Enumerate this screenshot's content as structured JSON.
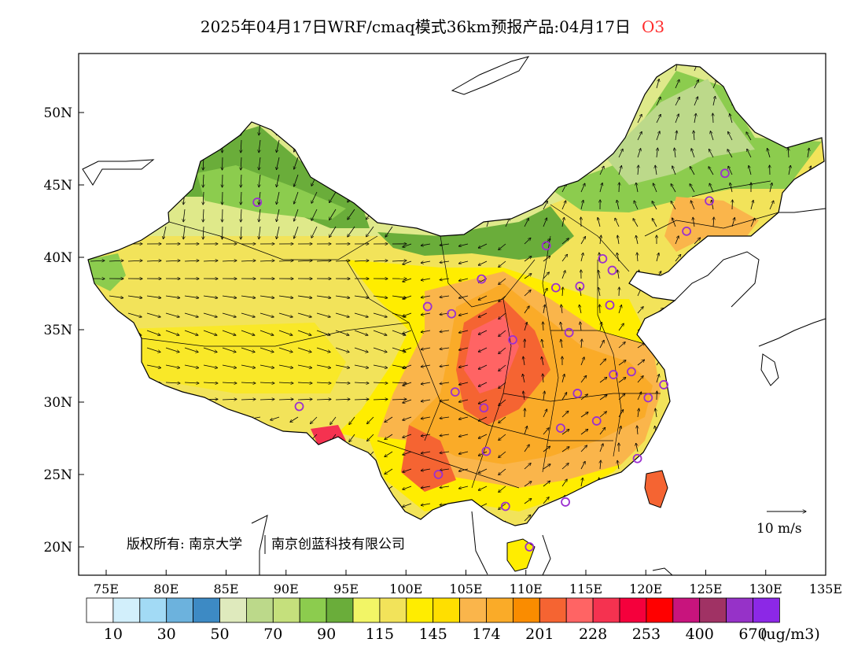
{
  "title": "2025年04月17日WRF/cmaq模式36km预报产品:04月17日",
  "variable": "O3",
  "map_data": {
    "lon_ticks": [
      "75E",
      "80E",
      "85E",
      "90E",
      "95E",
      "100E",
      "105E",
      "110E",
      "115E",
      "120E",
      "125E",
      "130E",
      "135E"
    ],
    "lat_ticks": [
      "50N",
      "45N",
      "40N",
      "35N",
      "30N",
      "25N",
      "20N"
    ],
    "copyright": "版权所有: 南京大学",
    "company": "南京创蓝科技有限公司",
    "wind_reference": "10 m/s",
    "stations": [
      {
        "lon": 87.6,
        "lat": 43.8
      },
      {
        "lon": 91.1,
        "lat": 29.7
      },
      {
        "lon": 101.8,
        "lat": 36.6
      },
      {
        "lon": 103.8,
        "lat": 36.1
      },
      {
        "lon": 106.3,
        "lat": 38.5
      },
      {
        "lon": 111.7,
        "lat": 40.8
      },
      {
        "lon": 112.5,
        "lat": 37.9
      },
      {
        "lon": 114.5,
        "lat": 38.0
      },
      {
        "lon": 116.4,
        "lat": 39.9
      },
      {
        "lon": 117.2,
        "lat": 39.1
      },
      {
        "lon": 117.0,
        "lat": 36.7
      },
      {
        "lon": 113.6,
        "lat": 34.8
      },
      {
        "lon": 108.9,
        "lat": 34.3
      },
      {
        "lon": 104.1,
        "lat": 30.7
      },
      {
        "lon": 106.5,
        "lat": 29.6
      },
      {
        "lon": 106.7,
        "lat": 26.6
      },
      {
        "lon": 102.7,
        "lat": 25.0
      },
      {
        "lon": 108.3,
        "lat": 22.8
      },
      {
        "lon": 113.3,
        "lat": 23.1
      },
      {
        "lon": 110.3,
        "lat": 20.0
      },
      {
        "lon": 112.9,
        "lat": 28.2
      },
      {
        "lon": 114.3,
        "lat": 30.6
      },
      {
        "lon": 115.9,
        "lat": 28.7
      },
      {
        "lon": 117.3,
        "lat": 31.9
      },
      {
        "lon": 118.8,
        "lat": 32.1
      },
      {
        "lon": 120.2,
        "lat": 30.3
      },
      {
        "lon": 121.5,
        "lat": 31.2
      },
      {
        "lon": 119.3,
        "lat": 26.1
      },
      {
        "lon": 123.4,
        "lat": 41.8
      },
      {
        "lon": 125.3,
        "lat": 43.9
      },
      {
        "lon": 126.6,
        "lat": 45.8
      }
    ]
  },
  "legend": {
    "colors": [
      "#ffffff",
      "#d2effb",
      "#a2daf5",
      "#6cb2dd",
      "#3d8ac4",
      "#dfeabd",
      "#bcd98a",
      "#c5e07c",
      "#8ccc4e",
      "#6aad3a",
      "#f2f566",
      "#f2e35a",
      "#ffed00",
      "#ffdf00",
      "#fab54b",
      "#faab28",
      "#fa8c00",
      "#f56432",
      "#ff6464",
      "#f53250",
      "#f5003c",
      "#ff0000",
      "#c8147d",
      "#a03264",
      "#9632c8",
      "#8c28e6"
    ],
    "labels": [
      "10",
      "30",
      "50",
      "70",
      "90",
      "115",
      "145",
      "174",
      "201",
      "228",
      "253",
      "400",
      "670"
    ],
    "unit": "(ug/m3)"
  }
}
